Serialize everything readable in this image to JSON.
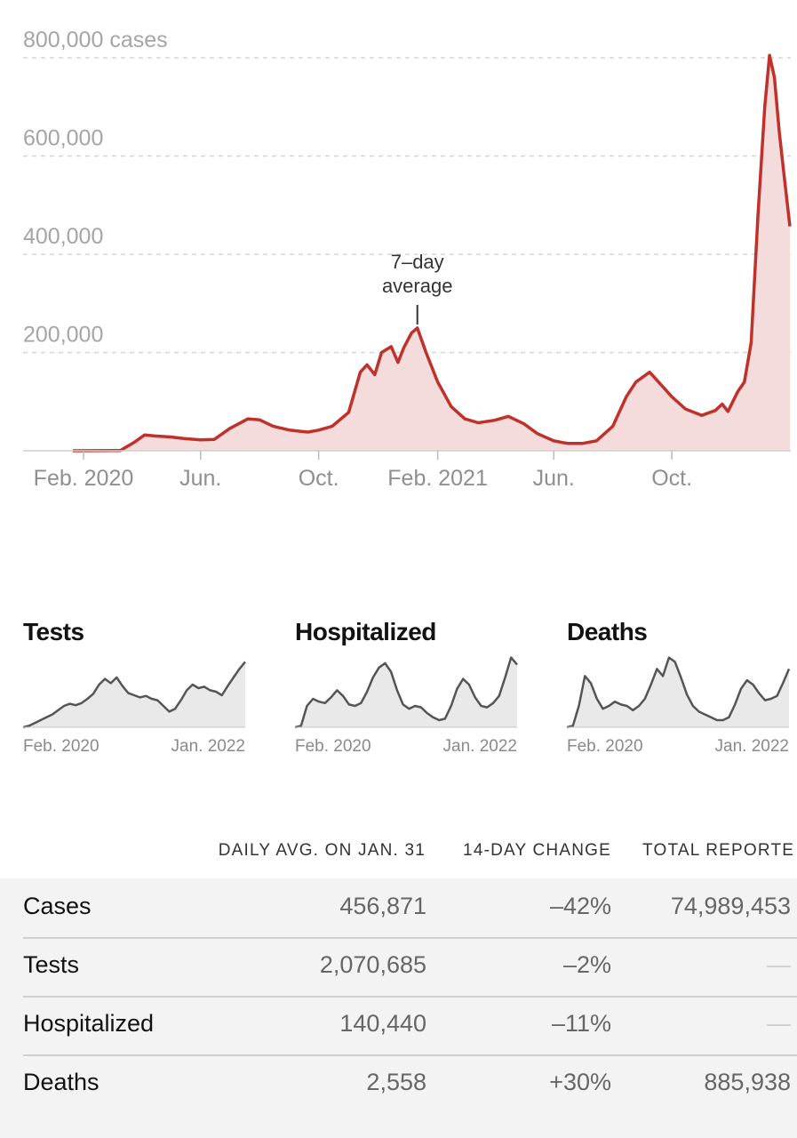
{
  "chart_data": [
    {
      "type": "area",
      "title": "",
      "ylabel_unit": "cases",
      "ylim": [
        0,
        800000
      ],
      "yticks": [
        {
          "value": 800000,
          "label": "800,000 cases"
        },
        {
          "value": 600000,
          "label": "600,000"
        },
        {
          "value": 400000,
          "label": "400,000"
        },
        {
          "value": 200000,
          "label": "200,000"
        }
      ],
      "xlim": [
        "2020-01-21",
        "2022-01-31"
      ],
      "xticks": [
        {
          "date": "2020-02-01",
          "label": "Feb. 2020"
        },
        {
          "date": "2020-06-01",
          "label": "Jun."
        },
        {
          "date": "2020-10-01",
          "label": "Oct."
        },
        {
          "date": "2021-02-01",
          "label": "Feb. 2021"
        },
        {
          "date": "2021-06-01",
          "label": "Jun."
        },
        {
          "date": "2021-10-01",
          "label": "Oct."
        }
      ],
      "annotation": {
        "lines": [
          "7–day",
          "average"
        ],
        "date": "2021-01-11"
      },
      "grid": true,
      "series": [
        {
          "color": "#c0312b",
          "fill": "#f4dcdc",
          "x": [
            "2020-01-21",
            "2020-03-10",
            "2020-03-25",
            "2020-04-04",
            "2020-04-15",
            "2020-05-01",
            "2020-05-15",
            "2020-06-01",
            "2020-06-15",
            "2020-07-01",
            "2020-07-20",
            "2020-08-01",
            "2020-08-15",
            "2020-09-01",
            "2020-09-10",
            "2020-09-20",
            "2020-10-01",
            "2020-10-15",
            "2020-11-01",
            "2020-11-13",
            "2020-11-20",
            "2020-11-28",
            "2020-12-05",
            "2020-12-15",
            "2020-12-22",
            "2020-12-28",
            "2021-01-05",
            "2021-01-11",
            "2021-01-20",
            "2021-02-01",
            "2021-02-15",
            "2021-03-01",
            "2021-03-15",
            "2021-04-01",
            "2021-04-15",
            "2021-05-01",
            "2021-05-15",
            "2021-06-01",
            "2021-06-15",
            "2021-07-01",
            "2021-07-15",
            "2021-08-01",
            "2021-08-15",
            "2021-08-25",
            "2021-09-01",
            "2021-09-08",
            "2021-09-15",
            "2021-10-01",
            "2021-10-15",
            "2021-11-01",
            "2021-11-15",
            "2021-11-22",
            "2021-11-28",
            "2021-12-08",
            "2021-12-15",
            "2021-12-22",
            "2021-12-29",
            "2022-01-05",
            "2022-01-10",
            "2022-01-15",
            "2022-01-20",
            "2022-01-25",
            "2022-01-31"
          ],
          "values": [
            0,
            500,
            18000,
            32000,
            30000,
            28000,
            25000,
            22000,
            23000,
            45000,
            65000,
            63000,
            50000,
            42000,
            40000,
            38000,
            42000,
            50000,
            78000,
            160000,
            175000,
            155000,
            200000,
            212000,
            180000,
            210000,
            240000,
            250000,
            200000,
            140000,
            90000,
            65000,
            57000,
            62000,
            70000,
            55000,
            35000,
            20000,
            15000,
            15000,
            20000,
            50000,
            110000,
            140000,
            150000,
            160000,
            145000,
            110000,
            85000,
            72000,
            82000,
            95000,
            80000,
            120000,
            140000,
            220000,
            480000,
            700000,
            805000,
            760000,
            650000,
            560000,
            456871
          ]
        }
      ]
    },
    {
      "type": "area",
      "title": "Tests",
      "xticks": [
        "Feb. 2020",
        "Jan. 2022"
      ],
      "values": [
        0,
        0.02,
        0.06,
        0.1,
        0.14,
        0.18,
        0.24,
        0.3,
        0.33,
        0.31,
        0.34,
        0.4,
        0.47,
        0.6,
        0.68,
        0.62,
        0.7,
        0.58,
        0.48,
        0.45,
        0.42,
        0.44,
        0.4,
        0.38,
        0.3,
        0.22,
        0.26,
        0.38,
        0.52,
        0.6,
        0.55,
        0.57,
        0.52,
        0.5,
        0.45,
        0.58,
        0.7,
        0.82,
        0.92
      ],
      "color": "#555555",
      "fill": "#e9e9e9"
    },
    {
      "type": "area",
      "title": "Hospitalized",
      "xticks": [
        "Feb. 2020",
        "Jan. 2022"
      ],
      "values": [
        0,
        0.02,
        0.3,
        0.4,
        0.36,
        0.34,
        0.42,
        0.52,
        0.44,
        0.32,
        0.3,
        0.34,
        0.5,
        0.7,
        0.84,
        0.9,
        0.78,
        0.52,
        0.32,
        0.26,
        0.3,
        0.28,
        0.2,
        0.14,
        0.1,
        0.12,
        0.3,
        0.54,
        0.68,
        0.6,
        0.42,
        0.3,
        0.28,
        0.34,
        0.44,
        0.7,
        0.98,
        0.88
      ],
      "color": "#555555",
      "fill": "#e9e9e9"
    },
    {
      "type": "area",
      "title": "Deaths",
      "xticks": [
        "Feb. 2020",
        "Jan. 2022"
      ],
      "values": [
        0,
        0.02,
        0.3,
        0.72,
        0.62,
        0.4,
        0.26,
        0.3,
        0.36,
        0.32,
        0.3,
        0.24,
        0.3,
        0.4,
        0.6,
        0.82,
        0.72,
        0.98,
        0.92,
        0.7,
        0.46,
        0.3,
        0.22,
        0.18,
        0.14,
        0.1,
        0.1,
        0.14,
        0.32,
        0.54,
        0.66,
        0.6,
        0.48,
        0.38,
        0.4,
        0.44,
        0.62,
        0.82
      ],
      "color": "#555555",
      "fill": "#e9e9e9"
    }
  ],
  "table": {
    "headers": [
      "DAILY AVG. ON JAN. 31",
      "14-DAY CHANGE",
      "TOTAL REPORTE"
    ],
    "rows": [
      {
        "label": "Cases",
        "avg": "456,871",
        "change": "–42%",
        "total": "74,989,453"
      },
      {
        "label": "Tests",
        "avg": "2,070,685",
        "change": "–2%",
        "total": "—"
      },
      {
        "label": "Hospitalized",
        "avg": "140,440",
        "change": "–11%",
        "total": "—"
      },
      {
        "label": "Deaths",
        "avg": "2,558",
        "change": "+30%",
        "total": "885,938"
      }
    ]
  }
}
